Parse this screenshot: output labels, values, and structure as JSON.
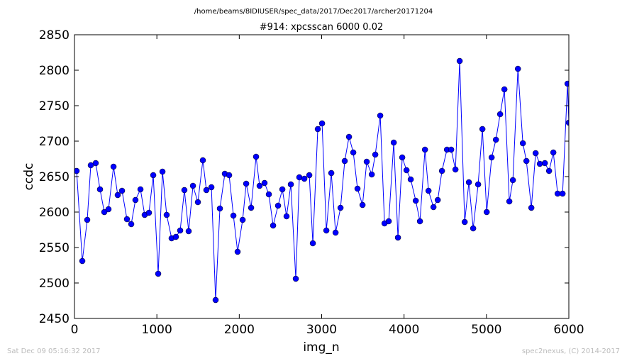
{
  "chart_data": {
    "type": "line",
    "suptitle": "/home/beams/8IDIUSER/spec_data/2017/Dec2017/archer20171204",
    "title": "#914: xpcsscan 6000 0.02",
    "x_label": "img_n",
    "y_label": "ccdc",
    "footer_left": "Sat Dec 09 05:16:32 2017",
    "footer_right": "spec2nexus, (C) 2014-2017",
    "color": "#0000ff",
    "marker": "circle",
    "x": [
      26,
      95,
      155,
      198,
      258,
      310,
      362,
      413,
      474,
      525,
      577,
      637,
      689,
      740,
      801,
      852,
      904,
      956,
      1016,
      1068,
      1119,
      1179,
      1231,
      1283,
      1334,
      1386,
      1438,
      1498,
      1558,
      1601,
      1662,
      1713,
      1765,
      1825,
      1877,
      1929,
      1980,
      2041,
      2084,
      2144,
      2204,
      2247,
      2307,
      2359,
      2411,
      2471,
      2523,
      2574,
      2626,
      2686,
      2729,
      2790,
      2850,
      2893,
      2953,
      3005,
      3057,
      3117,
      3169,
      3229,
      3280,
      3332,
      3384,
      3435,
      3496,
      3547,
      3608,
      3651,
      3711,
      3763,
      3814,
      3875,
      3926,
      3978,
      4030,
      4081,
      4142,
      4193,
      4254,
      4297,
      4357,
      4409,
      4460,
      4521,
      4572,
      4624,
      4675,
      4736,
      4787,
      4839,
      4899,
      4951,
      5003,
      5063,
      5115,
      5166,
      5218,
      5278,
      5321,
      5382,
      5442,
      5485,
      5545,
      5597,
      5648,
      5709,
      5760,
      5812,
      5864,
      5924,
      5984,
      6000
    ],
    "values": [
      2658,
      2531,
      2589,
      2666,
      2669,
      2632,
      2600,
      2604,
      2664,
      2624,
      2630,
      2590,
      2583,
      2617,
      2632,
      2596,
      2599,
      2652,
      2513,
      2657,
      2596,
      2563,
      2565,
      2574,
      2631,
      2573,
      2637,
      2614,
      2673,
      2631,
      2635,
      2476,
      2605,
      2654,
      2652,
      2595,
      2544,
      2589,
      2640,
      2606,
      2678,
      2637,
      2641,
      2625,
      2581,
      2609,
      2632,
      2594,
      2639,
      2506,
      2649,
      2647,
      2652,
      2556,
      2717,
      2725,
      2574,
      2655,
      2571,
      2606,
      2672,
      2706,
      2684,
      2633,
      2610,
      2671,
      2653,
      2681,
      2736,
      2584,
      2587,
      2698,
      2564,
      2677,
      2659,
      2646,
      2616,
      2587,
      2688,
      2630,
      2607,
      2617,
      2658,
      2688,
      2688,
      2660,
      2813,
      2586,
      2642,
      2577,
      2639,
      2717,
      2600,
      2677,
      2702,
      2738,
      2773,
      2615,
      2645,
      2802,
      2697,
      2672,
      2606,
      2683,
      2668,
      2669,
      2658,
      2684,
      2626,
      2626,
      2781,
      2726
    ],
    "xlim": [
      0,
      6000
    ],
    "xticks": [
      0,
      1000,
      2000,
      3000,
      4000,
      5000,
      6000
    ],
    "ylim": [
      2450,
      2850
    ],
    "yticks": [
      2450,
      2500,
      2550,
      2600,
      2650,
      2700,
      2750,
      2800,
      2850
    ],
    "grid": false
  }
}
